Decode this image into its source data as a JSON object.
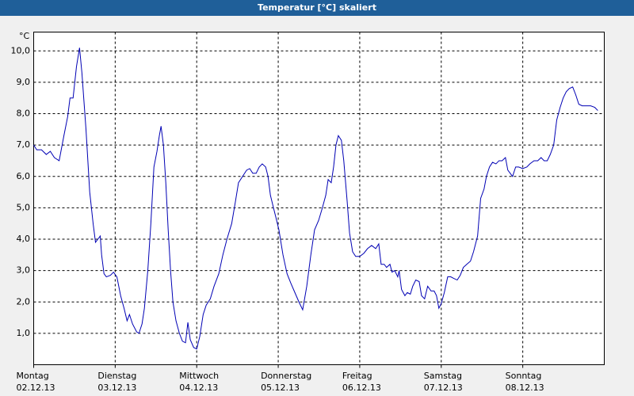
{
  "chart_data": {
    "type": "line",
    "title": "Temperatur [°C] skaliert",
    "y_label": "°C",
    "x": [
      0,
      0.9,
      2.3,
      3.7,
      4.9,
      6.1,
      7.5,
      8.9,
      10.0,
      10.7,
      11.6,
      12.6,
      13.5,
      14.2,
      15.4,
      16.5,
      17.5,
      18.2,
      18.9,
      19.6,
      20.0,
      20.7,
      21.4,
      22.6,
      23.5,
      24.5,
      25.6,
      26.6,
      27.5,
      28.2,
      29.1,
      30.3,
      31.0,
      31.9,
      32.6,
      33.6,
      34.5,
      35.4,
      36.3,
      37.0,
      37.5,
      38.2,
      38.9,
      39.6,
      40.3,
      41.0,
      41.9,
      42.9,
      43.8,
      44.7,
      45.4,
      46.1,
      47.1,
      48.0,
      48.9,
      49.9,
      50.8,
      52.0,
      53.1,
      54.5,
      55.7,
      56.9,
      58.3,
      59.4,
      60.3,
      61.5,
      62.7,
      63.6,
      64.5,
      65.5,
      66.4,
      67.3,
      68.3,
      69.0,
      69.7,
      70.6,
      71.3,
      72.2,
      73.4,
      74.6,
      75.7,
      76.9,
      78.1,
      79.2,
      80.4,
      81.6,
      82.7,
      83.9,
      85.0,
      86.0,
      86.7,
      87.6,
      88.3,
      89.0,
      89.7,
      90.6,
      91.3,
      92.3,
      93.0,
      93.9,
      94.8,
      96.0,
      97.2,
      98.3,
      99.5,
      100.7,
      101.6,
      102.3,
      103.2,
      103.9,
      104.9,
      105.5,
      106.3,
      107.2,
      107.6,
      108.3,
      109.3,
      110.0,
      110.9,
      111.6,
      112.5,
      113.5,
      114.2,
      115.1,
      116.0,
      117.0,
      117.9,
      118.6,
      119.3,
      120.0,
      120.9,
      121.9,
      122.8,
      123.7,
      124.7,
      125.6,
      126.5,
      127.5,
      128.6,
      129.5,
      130.7,
      131.6,
      132.6,
      133.3,
      134.2,
      135.1,
      136.1,
      137.0,
      137.9,
      138.9,
      139.6,
      140.3,
      141.0,
      141.9,
      142.8,
      144.0,
      145.2,
      146.1,
      147.3,
      148.4,
      149.4,
      150.3,
      151.2,
      152.1,
      153.1,
      154.0,
      155.0,
      155.9,
      156.8,
      157.7,
      158.7,
      159.6,
      160.5,
      161.5,
      162.9,
      164.0,
      165.2,
      166.1
    ],
    "series": [
      {
        "color": "#0000b4",
        "values": [
          7.0,
          6.85,
          6.85,
          6.7,
          6.8,
          6.6,
          6.5,
          7.3,
          7.9,
          8.5,
          8.5,
          9.5,
          10.1,
          9.3,
          7.5,
          5.5,
          4.5,
          3.9,
          4.0,
          4.1,
          3.5,
          2.9,
          2.8,
          2.85,
          2.95,
          2.8,
          2.2,
          1.8,
          1.4,
          1.6,
          1.3,
          1.05,
          1.0,
          1.3,
          1.8,
          3.0,
          4.5,
          6.3,
          6.8,
          7.3,
          7.6,
          7.0,
          5.8,
          4.3,
          3.0,
          2.0,
          1.4,
          1.0,
          0.75,
          0.7,
          1.35,
          0.8,
          0.55,
          0.5,
          0.9,
          1.6,
          1.9,
          2.1,
          2.5,
          2.9,
          3.5,
          4.0,
          4.5,
          5.2,
          5.8,
          6.0,
          6.2,
          6.25,
          6.1,
          6.1,
          6.3,
          6.4,
          6.3,
          6.0,
          5.4,
          5.0,
          4.7,
          4.3,
          3.5,
          2.9,
          2.6,
          2.3,
          2.0,
          1.75,
          2.5,
          3.5,
          4.3,
          4.6,
          5.0,
          5.4,
          5.9,
          5.8,
          6.3,
          7.0,
          7.3,
          7.15,
          6.5,
          5.2,
          4.2,
          3.6,
          3.45,
          3.45,
          3.55,
          3.7,
          3.8,
          3.7,
          3.85,
          3.2,
          3.2,
          3.1,
          3.2,
          2.95,
          3.0,
          2.8,
          3.0,
          2.4,
          2.2,
          2.3,
          2.25,
          2.5,
          2.7,
          2.65,
          2.2,
          2.1,
          2.5,
          2.35,
          2.35,
          2.2,
          1.8,
          1.95,
          2.3,
          2.8,
          2.8,
          2.75,
          2.7,
          2.85,
          3.1,
          3.2,
          3.3,
          3.6,
          4.1,
          5.3,
          5.6,
          6.0,
          6.3,
          6.45,
          6.4,
          6.5,
          6.5,
          6.6,
          6.2,
          6.1,
          6.0,
          6.3,
          6.3,
          6.25,
          6.3,
          6.4,
          6.5,
          6.5,
          6.6,
          6.5,
          6.5,
          6.7,
          7.0,
          7.8,
          8.2,
          8.5,
          8.7,
          8.8,
          8.85,
          8.6,
          8.3,
          8.25,
          8.25,
          8.25,
          8.2,
          8.1
        ]
      }
    ],
    "xlim": [
      0,
      168
    ],
    "xticks": [
      {
        "value": 0,
        "label": [
          "Montag",
          "02.12.13"
        ]
      },
      {
        "value": 24,
        "label": [
          "Dienstag",
          "03.12.13"
        ]
      },
      {
        "value": 48,
        "label": [
          "Mittwoch",
          "04.12.13"
        ]
      },
      {
        "value": 72,
        "label": [
          "Donnerstag",
          "05.12.13"
        ]
      },
      {
        "value": 96,
        "label": [
          "Freitag",
          "06.12.13"
        ]
      },
      {
        "value": 120,
        "label": [
          "Samstag",
          "07.12.13"
        ]
      },
      {
        "value": 144,
        "label": [
          "Sonntag",
          "08.12.13"
        ]
      }
    ],
    "ylim": [
      0,
      10.6
    ],
    "yticks": [
      {
        "value": 1,
        "label": "1,0"
      },
      {
        "value": 2,
        "label": "2,0"
      },
      {
        "value": 3,
        "label": "3,0"
      },
      {
        "value": 4,
        "label": "4,0"
      },
      {
        "value": 5,
        "label": "5,0"
      },
      {
        "value": 6,
        "label": "6,0"
      },
      {
        "value": 7,
        "label": "7,0"
      },
      {
        "value": 8,
        "label": "8,0"
      },
      {
        "value": 9,
        "label": "9,0"
      },
      {
        "value": 10,
        "label": "10,0"
      }
    ],
    "grid": true
  }
}
